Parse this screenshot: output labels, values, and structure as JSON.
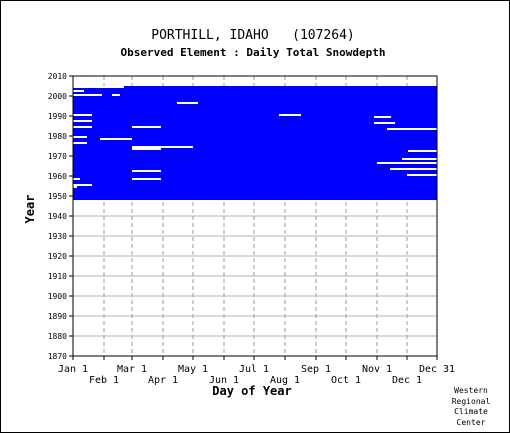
{
  "chart_data": {
    "type": "heatmap",
    "title": "PORTHILL, IDAHO   (107264)",
    "subtitle": "Observed Element : Daily Total Snowdepth",
    "xlabel": "Day of Year",
    "ylabel": "Year",
    "ylim": [
      1870,
      2010
    ],
    "y_ticks": [
      1870,
      1880,
      1890,
      1900,
      1910,
      1920,
      1930,
      1940,
      1950,
      1960,
      1970,
      1980,
      1990,
      2000,
      2010
    ],
    "x_ticks_upper": [
      {
        "label": "Jan 1",
        "day": 1
      },
      {
        "label": "Mar 1",
        "day": 60
      },
      {
        "label": "May 1",
        "day": 121
      },
      {
        "label": "Jul 1",
        "day": 182
      },
      {
        "label": "Sep 1",
        "day": 244
      },
      {
        "label": "Nov 1",
        "day": 305
      },
      {
        "label": "Dec 31",
        "day": 365
      }
    ],
    "x_ticks_lower": [
      {
        "label": "Feb 1",
        "day": 32
      },
      {
        "label": "Apr 1",
        "day": 91
      },
      {
        "label": "Jun 1",
        "day": 152
      },
      {
        "label": "Aug 1",
        "day": 213
      },
      {
        "label": "Oct 1",
        "day": 274
      },
      {
        "label": "Dec 1",
        "day": 335
      }
    ],
    "grid": true,
    "data_color": "#0000ff",
    "observed_period": {
      "start_year": 1948,
      "end_year": 2004,
      "start_day": 1,
      "end_day": 365
    },
    "missing_segments": [
      {
        "year": 2004,
        "start_day": 1,
        "end_day": 52
      },
      {
        "year": 2002,
        "start_day": 1,
        "end_day": 12
      },
      {
        "year": 2000,
        "start_day": 1,
        "end_day": 30
      },
      {
        "year": 2000,
        "start_day": 40,
        "end_day": 48
      },
      {
        "year": 1996,
        "start_day": 105,
        "end_day": 126
      },
      {
        "year": 1990,
        "start_day": 1,
        "end_day": 20
      },
      {
        "year": 1990,
        "start_day": 207,
        "end_day": 229
      },
      {
        "year": 1989,
        "start_day": 302,
        "end_day": 319
      },
      {
        "year": 1987,
        "start_day": 1,
        "end_day": 20
      },
      {
        "year": 1986,
        "start_day": 302,
        "end_day": 323
      },
      {
        "year": 1984,
        "start_day": 1,
        "end_day": 20
      },
      {
        "year": 1984,
        "start_day": 60,
        "end_day": 89
      },
      {
        "year": 1983,
        "start_day": 315,
        "end_day": 365
      },
      {
        "year": 1979,
        "start_day": 1,
        "end_day": 15
      },
      {
        "year": 1978,
        "start_day": 28,
        "end_day": 60
      },
      {
        "year": 1976,
        "start_day": 1,
        "end_day": 15
      },
      {
        "year": 1974,
        "start_day": 60,
        "end_day": 121
      },
      {
        "year": 1973,
        "start_day": 60,
        "end_day": 89
      },
      {
        "year": 1972,
        "start_day": 336,
        "end_day": 365
      },
      {
        "year": 1968,
        "start_day": 330,
        "end_day": 365
      },
      {
        "year": 1966,
        "start_day": 305,
        "end_day": 365
      },
      {
        "year": 1963,
        "start_day": 318,
        "end_day": 365
      },
      {
        "year": 1962,
        "start_day": 60,
        "end_day": 89
      },
      {
        "year": 1960,
        "start_day": 335,
        "end_day": 365
      },
      {
        "year": 1958,
        "start_day": 1,
        "end_day": 8
      },
      {
        "year": 1958,
        "start_day": 60,
        "end_day": 89
      },
      {
        "year": 1955,
        "start_day": 1,
        "end_day": 20
      },
      {
        "year": 1954,
        "start_day": 1,
        "end_day": 5
      }
    ]
  },
  "footer": {
    "credit_lines": [
      "Western",
      "Regional",
      "Climate",
      "Center"
    ]
  }
}
